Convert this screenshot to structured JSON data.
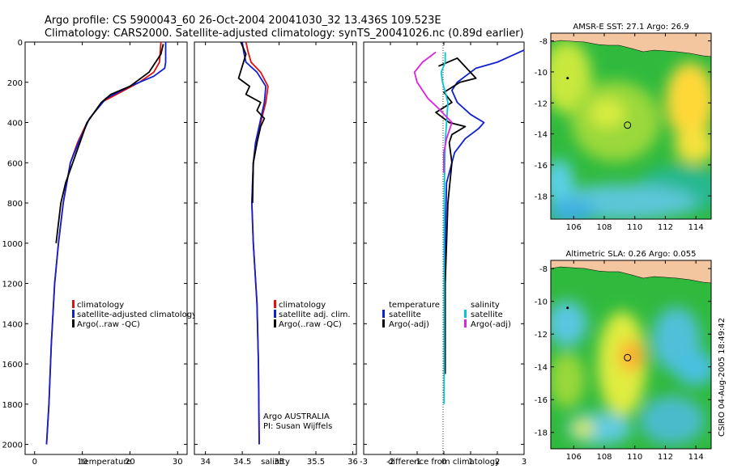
{
  "header": {
    "title_line1": "Argo profile: CS 5900043_60 26-Oct-2004 20041030_32 13.436S 109.523E",
    "title_line2": "Climatology: CARS2000. Satellite-adjusted climatology: synTS_20041026.nc (0.89d earlier)"
  },
  "side_stamp": "CSIRO 04-Aug-2005 18:49:42",
  "colors": {
    "climatology": "#e01010",
    "satellite": "#1020d0",
    "argo": "#000000",
    "salinity": "#00c8d8",
    "salinity_argo": "#e020e0",
    "land": "#f4c6a0"
  },
  "chart_data": [
    {
      "id": "temperature",
      "type": "line",
      "xlabel": "temperature",
      "ylabel": "",
      "xlim": [
        -2,
        32
      ],
      "ylim": [
        2050,
        0
      ],
      "xticks": [
        0,
        10,
        20,
        30
      ],
      "yticks": [
        0,
        200,
        400,
        600,
        800,
        1000,
        1200,
        1400,
        1600,
        1800,
        2000
      ],
      "legend": {
        "position": "lower-right",
        "entries": [
          "climatology",
          "satellite-adjusted climatology",
          "Argo(..raw -QC)"
        ]
      },
      "series": [
        {
          "name": "climatology",
          "color": "#e01010",
          "x": [
            26.5,
            26.2,
            25,
            22,
            18,
            14,
            11,
            9,
            7.5,
            6,
            5,
            4.2,
            3.5,
            3,
            2.5
          ],
          "y": [
            0,
            100,
            150,
            200,
            250,
            300,
            400,
            500,
            600,
            800,
            1000,
            1200,
            1500,
            1800,
            2000
          ]
        },
        {
          "name": "satellite-adjusted climatology",
          "color": "#1020d0",
          "x": [
            27.5,
            27.5,
            27.3,
            25,
            20,
            15,
            11.5,
            9.2,
            7.5,
            6,
            5,
            4.2,
            3.5,
            3,
            2.5
          ],
          "y": [
            0,
            100,
            130,
            170,
            220,
            280,
            380,
            500,
            600,
            800,
            1000,
            1200,
            1500,
            1800,
            2000
          ]
        },
        {
          "name": "Argo(..raw -QC)",
          "color": "#000000",
          "x": [
            27,
            26.5,
            24,
            20,
            16,
            14,
            11,
            9.5,
            8,
            6.5,
            5.5,
            4.5
          ],
          "y": [
            10,
            60,
            150,
            220,
            260,
            300,
            400,
            500,
            600,
            700,
            800,
            1000
          ]
        }
      ]
    },
    {
      "id": "salinity",
      "type": "line",
      "xlabel": "salinity",
      "ylabel": "",
      "xlim": [
        33.85,
        36.05
      ],
      "ylim": [
        2050,
        0
      ],
      "xticks": [
        34,
        34.5,
        35,
        35.5,
        36
      ],
      "legend": {
        "position": "lower-right",
        "entries": [
          "climatology",
          "satellite adj. clim.",
          "Argo(..raw -QC)"
        ]
      },
      "annotations": [
        "Argo AUSTRALIA",
        "PI: Susan Wijffels"
      ],
      "series": [
        {
          "name": "climatology",
          "color": "#e01010",
          "x": [
            34.55,
            34.58,
            34.62,
            34.75,
            34.85,
            34.82,
            34.75,
            34.7,
            34.65,
            34.63,
            34.65,
            34.7,
            34.72,
            34.73
          ],
          "y": [
            0,
            50,
            100,
            150,
            220,
            300,
            400,
            500,
            600,
            800,
            1000,
            1300,
            1600,
            2000
          ]
        },
        {
          "name": "satellite adj. clim.",
          "color": "#1020d0",
          "x": [
            34.5,
            34.52,
            34.55,
            34.7,
            34.82,
            34.8,
            34.74,
            34.68,
            34.65,
            34.63,
            34.65,
            34.7,
            34.72,
            34.73
          ],
          "y": [
            0,
            50,
            100,
            150,
            220,
            300,
            400,
            500,
            600,
            800,
            1000,
            1300,
            1600,
            2000
          ]
        },
        {
          "name": "Argo(..raw -QC)",
          "color": "#000000",
          "x": [
            34.48,
            34.55,
            34.5,
            34.45,
            34.6,
            34.55,
            34.75,
            34.7,
            34.8,
            34.75,
            34.7,
            34.65,
            34.64
          ],
          "y": [
            0,
            60,
            120,
            180,
            220,
            260,
            300,
            340,
            380,
            420,
            500,
            600,
            800
          ]
        }
      ]
    },
    {
      "id": "difference",
      "type": "line",
      "xlabel": "difference from climatology",
      "ylabel": "",
      "xlim": [
        -3,
        3
      ],
      "ylim": [
        2050,
        0
      ],
      "xticks": [
        -3,
        -2,
        -1,
        0,
        1,
        2,
        3
      ],
      "legend": {
        "position": "lower-center",
        "entries": [
          "temperature",
          "satellite",
          "Argo(-adj)",
          "salinity",
          "satellite",
          "Argo(-adj)"
        ]
      },
      "series": [
        {
          "name": "temperature satellite",
          "color": "#1020d0",
          "x": [
            3,
            2,
            1.2,
            0.8,
            0.5,
            0.3,
            0.5,
            1.0,
            1.5,
            1.3,
            0.8,
            0.4,
            0.1,
            0.05,
            0.02
          ],
          "y": [
            40,
            100,
            130,
            170,
            200,
            240,
            300,
            360,
            400,
            430,
            480,
            550,
            700,
            1000,
            1500
          ]
        },
        {
          "name": "temperature Argo(-adj)",
          "color": "#000000",
          "x": [
            -0.2,
            0.5,
            1.2,
            0.6,
            0,
            0.3,
            -0.3,
            0.2,
            0.8,
            0.3,
            0.2,
            0.3,
            0.15,
            0.05,
            0.05
          ],
          "y": [
            120,
            80,
            180,
            200,
            250,
            300,
            350,
            400,
            420,
            460,
            500,
            600,
            800,
            1200,
            1650
          ]
        },
        {
          "name": "salinity satellite",
          "color": "#00c8d8",
          "x": [
            0.05,
            0.05,
            -0.1,
            -0.05,
            0.15,
            0.1,
            0.05,
            0.02,
            0.01,
            0.01
          ],
          "y": [
            50,
            100,
            150,
            200,
            300,
            400,
            500,
            700,
            1000,
            1800
          ]
        },
        {
          "name": "salinity Argo(-adj)",
          "color": "#e020e0",
          "x": [
            -0.3,
            -0.8,
            -1.1,
            -1.0,
            -0.6,
            -0.2,
            0.3,
            0.1,
            0,
            0
          ],
          "y": [
            50,
            100,
            150,
            200,
            280,
            330,
            400,
            480,
            550,
            650
          ]
        }
      ]
    },
    {
      "id": "sst_map",
      "type": "heatmap",
      "title": "AMSR-E SST: 27.1 Argo: 26.9",
      "xlim": [
        104.5,
        115
      ],
      "ylim": [
        -19.5,
        -7.5
      ],
      "xticks": [
        106,
        108,
        110,
        112,
        114
      ],
      "yticks": [
        -8,
        -10,
        -12,
        -14,
        -16,
        -18
      ],
      "markers": [
        {
          "label": "profile",
          "lon": 109.523,
          "lat": -13.436
        },
        {
          "label": "prior",
          "lon": 105.6,
          "lat": -10.4
        }
      ]
    },
    {
      "id": "sla_map",
      "type": "heatmap",
      "title": "Altimetric SLA: 0.26 Argo: 0.055",
      "xlim": [
        104.5,
        115
      ],
      "ylim": [
        -19,
        -7.5
      ],
      "xticks": [
        106,
        108,
        110,
        112,
        114
      ],
      "yticks": [
        -8,
        -10,
        -12,
        -14,
        -16,
        -18
      ],
      "markers": [
        {
          "label": "profile",
          "lon": 109.523,
          "lat": -13.436
        },
        {
          "label": "prior",
          "lon": 105.6,
          "lat": -10.4
        }
      ]
    }
  ]
}
